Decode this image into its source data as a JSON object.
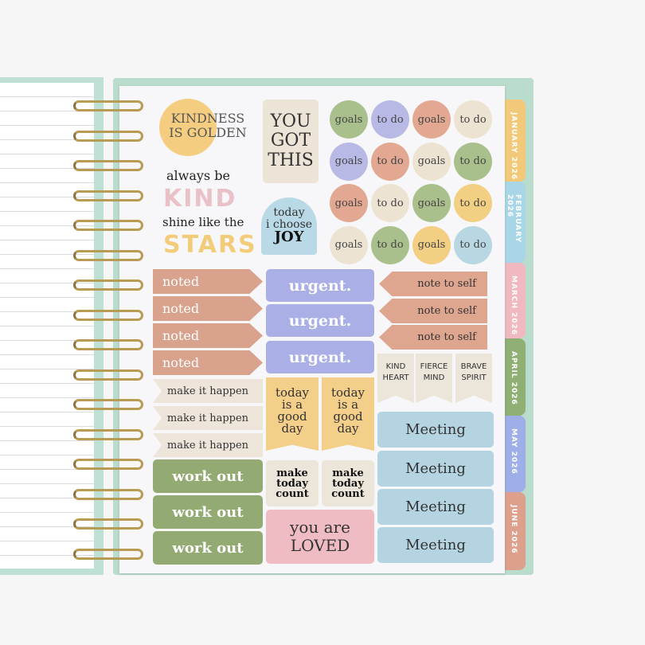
{
  "tabs": [
    {
      "label": "JANUARY 2026",
      "color": "#f2c978"
    },
    {
      "label": "FEBRUARY 2026",
      "color": "#a9d6e6"
    },
    {
      "label": "MARCH 2026",
      "color": "#efb9bf"
    },
    {
      "label": "APRIL 2026",
      "color": "#8faf74"
    },
    {
      "label": "MAY 2026",
      "color": "#9eaee6"
    },
    {
      "label": "JUNE 2026",
      "color": "#dca08c"
    }
  ],
  "stickers": {
    "kindness": "KINDNESS IS GOLDEN",
    "you_got_this": "YOU GOT THIS",
    "kind_small": "always be",
    "kind_big": "KIND",
    "stars_small": "shine like the",
    "stars_big": "STARS",
    "joy_line1": "today",
    "joy_line2": "i choose",
    "joy_line3": "JOY",
    "circles": [
      {
        "label": "goals",
        "color": "#a9c08c"
      },
      {
        "label": "to do",
        "color": "#b9b9e6"
      },
      {
        "label": "goals",
        "color": "#e2a892"
      },
      {
        "label": "to do",
        "color": "#ede3d3"
      },
      {
        "label": "goals",
        "color": "#b9b9e6"
      },
      {
        "label": "to do",
        "color": "#e2a892"
      },
      {
        "label": "goals",
        "color": "#ede3d3"
      },
      {
        "label": "to do",
        "color": "#a9c08c"
      },
      {
        "label": "goals",
        "color": "#e2a892"
      },
      {
        "label": "to do",
        "color": "#ede3d3"
      },
      {
        "label": "goals",
        "color": "#a9c08c"
      },
      {
        "label": "to do",
        "color": "#f2cf83"
      },
      {
        "label": "goals",
        "color": "#ede3d3"
      },
      {
        "label": "to do",
        "color": "#a9c08c"
      },
      {
        "label": "goals",
        "color": "#f2cf83"
      },
      {
        "label": "to do",
        "color": "#b8d7e3"
      }
    ],
    "noted": [
      "noted",
      "noted",
      "noted",
      "noted"
    ],
    "urgent": [
      "urgent.",
      "urgent.",
      "urgent."
    ],
    "note_to_self": [
      "note to self",
      "note to self",
      "note to self"
    ],
    "pennants": [
      "KIND HEART",
      "FIERCE MIND",
      "BRAVE SPIRIT"
    ],
    "make_it_happen": [
      "make it happen",
      "make it happen",
      "make it happen"
    ],
    "good_day": [
      "today is a good day",
      "today is a good day"
    ],
    "meeting": [
      "Meeting",
      "Meeting",
      "Meeting",
      "Meeting"
    ],
    "make_today_count": [
      "make today count",
      "make today count"
    ],
    "work_out": [
      "work out",
      "work out",
      "work out"
    ],
    "loved_line1": "you are",
    "loved_line2": "LOVED"
  }
}
